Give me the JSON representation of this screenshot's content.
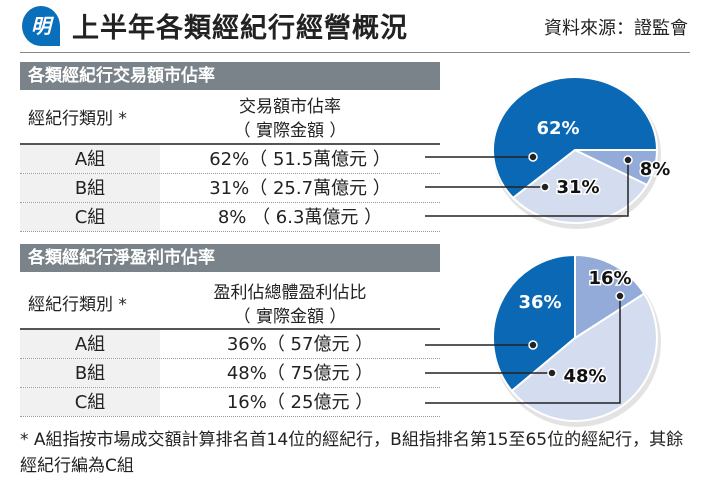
{
  "header": {
    "logo": "明",
    "title": "上半年各類經紀行經營概況",
    "source": "資料來源：證監會"
  },
  "colors": {
    "A": "#0a68b4",
    "B": "#d4ddef",
    "C": "#93abd9",
    "bar": "#7a8389"
  },
  "section1": {
    "title": "各類經紀行交易額市佔率",
    "col1": "經紀行類別 *",
    "col2_line1": "交易額市佔率",
    "col2_line2": "（ 實際金額 ）",
    "rows": [
      {
        "group": "A組",
        "value": "62%（ 51.5萬億元 ）"
      },
      {
        "group": "B組",
        "value": "31%（ 25.7萬億元 ）"
      },
      {
        "group": "C組",
        "value": "8% （ 6.3萬億元 ）"
      }
    ]
  },
  "section2": {
    "title": "各類經紀行淨盈利市佔率",
    "col1": "經紀行類別 *",
    "col2_line1": "盈利佔總體盈利佔比",
    "col2_line2": "（ 實際金額 ）",
    "rows": [
      {
        "group": "A組",
        "value": "36%（ 57億元 ）"
      },
      {
        "group": "B組",
        "value": "48%（ 75億元 ）"
      },
      {
        "group": "C組",
        "value": "16%（ 25億元 ）"
      }
    ]
  },
  "chart_data": [
    {
      "type": "pie",
      "categories": [
        "A組",
        "B組",
        "C組"
      ],
      "values": [
        62,
        31,
        8
      ],
      "labels": [
        "62%",
        "31%",
        "8%"
      ]
    },
    {
      "type": "pie",
      "categories": [
        "A組",
        "B組",
        "C組"
      ],
      "values": [
        36,
        48,
        16
      ],
      "labels": [
        "36%",
        "48%",
        "16%"
      ]
    }
  ],
  "footnote": "* A組指按市場成交額計算排名首14位的經紀行，B組指排名第15至65位的經紀行，其餘經紀行編為C組"
}
